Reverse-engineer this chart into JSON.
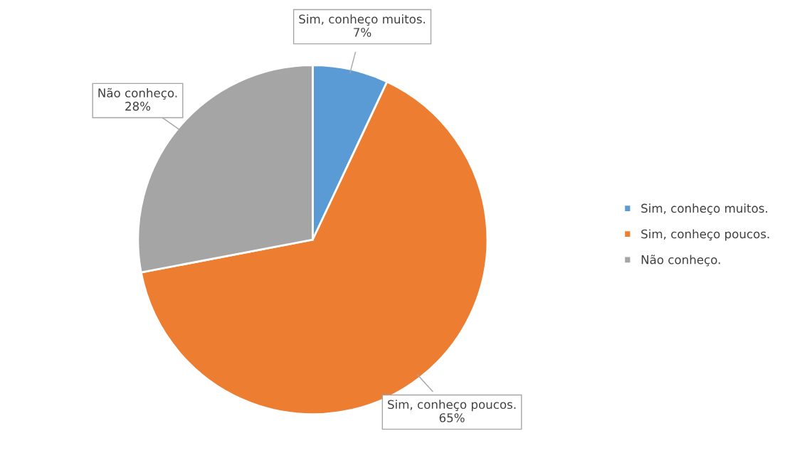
{
  "chart_data": {
    "type": "pie",
    "categories": [
      "Sim, conheço muitos.",
      "Sim, conheço poucos.",
      "Não conheço."
    ],
    "values": [
      7,
      65,
      28
    ],
    "colors": [
      "#5b9bd5",
      "#ed7d31",
      "#a5a5a5"
    ],
    "value_labels": [
      "7%",
      "65%",
      "28%"
    ],
    "legend": "right"
  }
}
